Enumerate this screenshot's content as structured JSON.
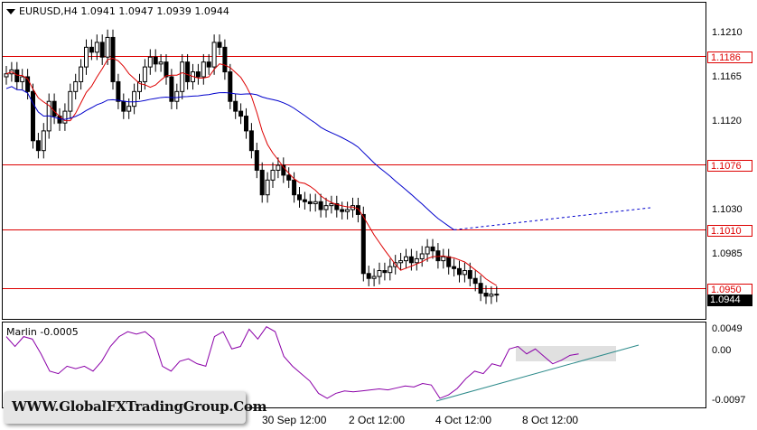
{
  "chart": {
    "symbol_line": "EURUSD,H4  1.0941 1.0947 1.0939 1.0944",
    "price_ticks": [
      "1.1210",
      "1.1165",
      "1.1120",
      "1.1030",
      "1.0985"
    ],
    "levels": [
      "1.1186",
      "1.1076",
      "1.1010",
      "1.0950"
    ],
    "current_price": "1.0944",
    "time_labels": [
      "30 Sep 12:00",
      "2 Oct 12:00",
      "4 Oct 12:00",
      "8 Oct 12:00"
    ],
    "level_color": "#dd0000",
    "ma_fast_color": "#dd0000",
    "ma_slow_color": "#0000cc"
  },
  "oscillator": {
    "title": "Marlin -0.0005",
    "ticks": [
      "0.0049",
      "0.00",
      "-0.0097"
    ],
    "line_color": "#8b00a8",
    "trendline_color": "#2e8b8b"
  },
  "watermark": {
    "text": "WWW.GlobalFXTradingGroup.Com"
  }
}
